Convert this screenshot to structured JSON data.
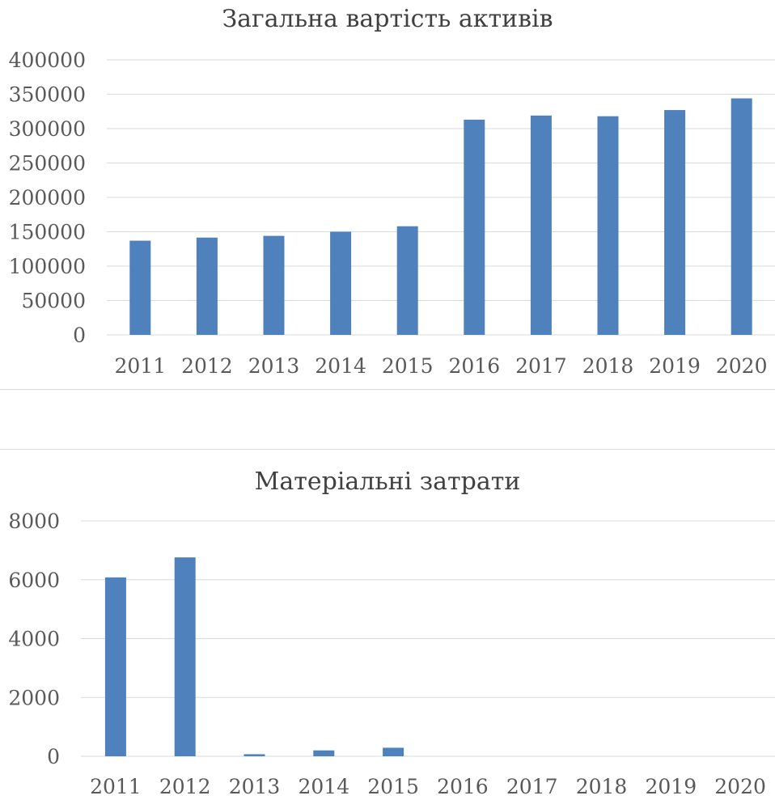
{
  "chart_data": [
    {
      "type": "bar",
      "title": "Загальна вартість активів",
      "categories": [
        "2011",
        "2012",
        "2013",
        "2014",
        "2015",
        "2016",
        "2017",
        "2018",
        "2019",
        "2020"
      ],
      "values": [
        137000,
        141500,
        144000,
        150000,
        158000,
        313000,
        319000,
        318000,
        327000,
        344000
      ],
      "ylim": [
        0,
        400000
      ],
      "yticks": [
        "0",
        "50000",
        "100000",
        "150000",
        "200000",
        "250000",
        "300000",
        "350000",
        "400000"
      ],
      "grid": true,
      "bar_color": "#4f81bd"
    },
    {
      "type": "bar",
      "title": "Матеріальні затрати",
      "categories": [
        "2011",
        "2012",
        "2013",
        "2014",
        "2015",
        "2016",
        "2017",
        "2018",
        "2019",
        "2020"
      ],
      "values": [
        6080,
        6760,
        70,
        200,
        290,
        0,
        0,
        0,
        0,
        0
      ],
      "ylim": [
        0,
        8000
      ],
      "yticks": [
        "0",
        "2000",
        "4000",
        "6000",
        "8000"
      ],
      "grid": true,
      "bar_color": "#4f81bd"
    }
  ]
}
